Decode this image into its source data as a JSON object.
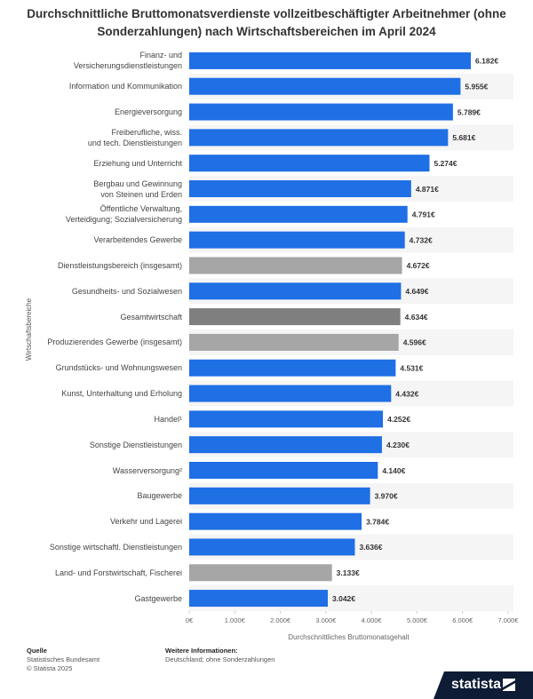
{
  "chart_data": {
    "type": "bar",
    "orientation": "horizontal",
    "title": "Durchschnittliche Bruttomonatsverdienste vollzeitbeschäftigter Arbeitnehmer (ohne Sonderzahlungen) nach Wirtschaftsbereichen im April 2024",
    "x_label": "Durchschnittliches Bruttomonatsgehalt",
    "y_label": "Wirtschaftsbereiche",
    "categories": [
      "Finanz- und\nVersicherungsdienstleistungen",
      "Information und Kommunikation",
      "Energieversorgung",
      "Freiberufliche, wiss.\nund tech. Dienstleistungen",
      "Erziehung und Unterricht",
      "Bergbau und Gewinnung\nvon Steinen und Erden",
      "Öffentliche Verwaltung,\nVerteidigung; Sozialversicherung",
      "Verarbeitendes Gewerbe",
      "Dienstleistungsbereich (insgesamt)",
      "Gesundheits- und Sozialwesen",
      "Gesamtwirtschaft",
      "Produzierendes Gewerbe (insgesamt)",
      "Grundstücks- und Wohnungswesen",
      "Kunst, Unterhaltung und Erholung",
      "Handel¹",
      "Sonstige Dienstleistungen",
      "Wasserversorgung²",
      "Baugewerbe",
      "Verkehr und Lagerei",
      "Sonstige wirtschaftl. Dienstleistungen",
      "Land- und Forstwirtschaft, Fischerei",
      "Gastgewerbe"
    ],
    "values": [
      6182,
      5955,
      5789,
      5681,
      5274,
      4871,
      4791,
      4732,
      4672,
      4649,
      4634,
      4596,
      4531,
      4432,
      4252,
      4230,
      4140,
      3970,
      3784,
      3636,
      3133,
      3042
    ],
    "value_labels": [
      "6.182€",
      "5.955€",
      "5.789€",
      "5.681€",
      "5.274€",
      "4.871€",
      "4.791€",
      "4.732€",
      "4.672€",
      "4.649€",
      "4.634€",
      "4.596€",
      "4.531€",
      "4.432€",
      "4.252€",
      "4.230€",
      "4.140€",
      "3.970€",
      "3.784€",
      "3.636€",
      "3.133€",
      "3.042€"
    ],
    "colors": [
      "#1f6fe5",
      "#1f6fe5",
      "#1f6fe5",
      "#1f6fe5",
      "#1f6fe5",
      "#1f6fe5",
      "#1f6fe5",
      "#1f6fe5",
      "#a6a6a6",
      "#1f6fe5",
      "#7f7f7f",
      "#a6a6a6",
      "#1f6fe5",
      "#1f6fe5",
      "#1f6fe5",
      "#1f6fe5",
      "#1f6fe5",
      "#1f6fe5",
      "#1f6fe5",
      "#1f6fe5",
      "#a6a6a6",
      "#1f6fe5"
    ],
    "xlim": [
      0,
      7000
    ],
    "xticks": [
      {
        "value": 0,
        "label": "0€"
      },
      {
        "value": 1000,
        "label": "1.000€"
      },
      {
        "value": 2000,
        "label": "2.000€"
      },
      {
        "value": 3000,
        "label": "3.000€"
      },
      {
        "value": 4000,
        "label": "4.000€"
      },
      {
        "value": 5000,
        "label": "5.000€"
      },
      {
        "value": 6000,
        "label": "6.000€"
      },
      {
        "value": 7000,
        "label": "7.000€"
      }
    ],
    "striped_rows": true
  },
  "footer": {
    "source_heading": "Quelle",
    "source": "Statistisches Bundesamt",
    "copyright": "© Statista 2025",
    "info_heading": "Weitere Informationen:",
    "info": "Deutschland; ohne Sonderzahlungen",
    "logo": "statista"
  }
}
